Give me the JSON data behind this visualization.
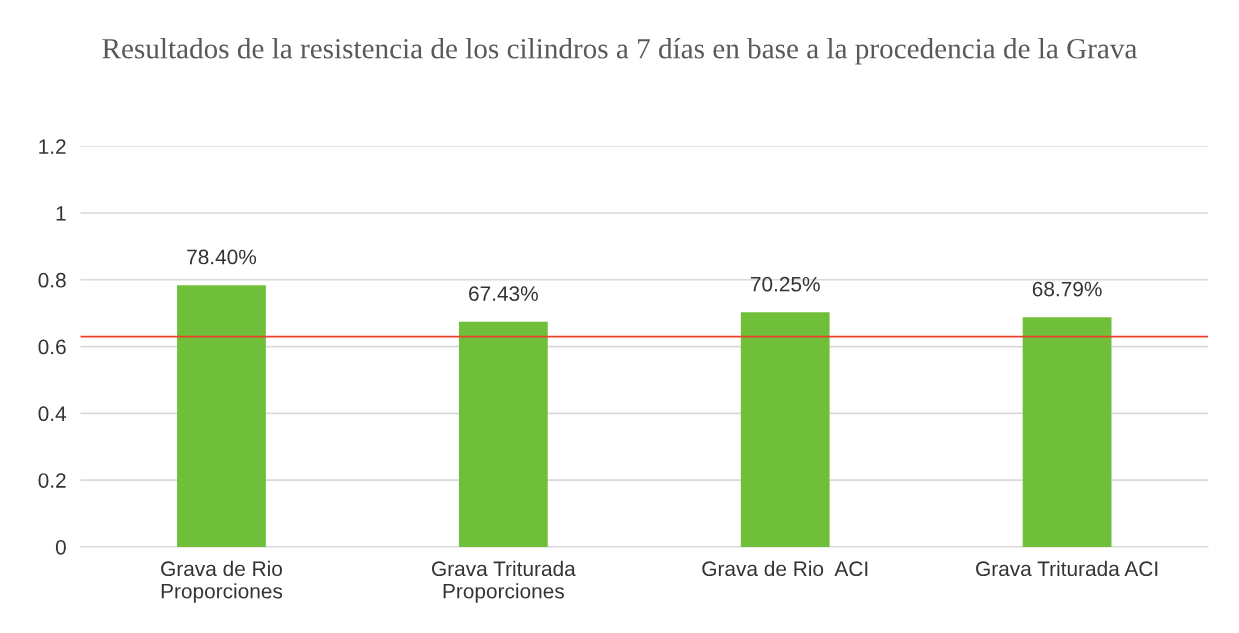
{
  "chart_data": {
    "type": "bar",
    "title": "Resultados de la resistencia de los cilindros a 7 días en base a la procedencia de la Grava",
    "categories": [
      "Grava de Rio\nProporciones",
      "Grava Triturada\nProporciones",
      "Grava de Rio  ACI",
      "Grava Triturada ACI"
    ],
    "values": [
      0.784,
      0.6743,
      0.7025,
      0.6879
    ],
    "value_labels": [
      "78.40%",
      "67.43%",
      "70.25%",
      "68.79%"
    ],
    "color": "#70bf3b",
    "ylim": [
      0,
      1.2
    ],
    "yticks": [
      0,
      0.2,
      0.4,
      0.6,
      0.8,
      1,
      1.2
    ],
    "grid": "y",
    "ref_lines": [
      {
        "axis": "y",
        "value": 0.63,
        "color": "#e8412c"
      }
    ]
  }
}
